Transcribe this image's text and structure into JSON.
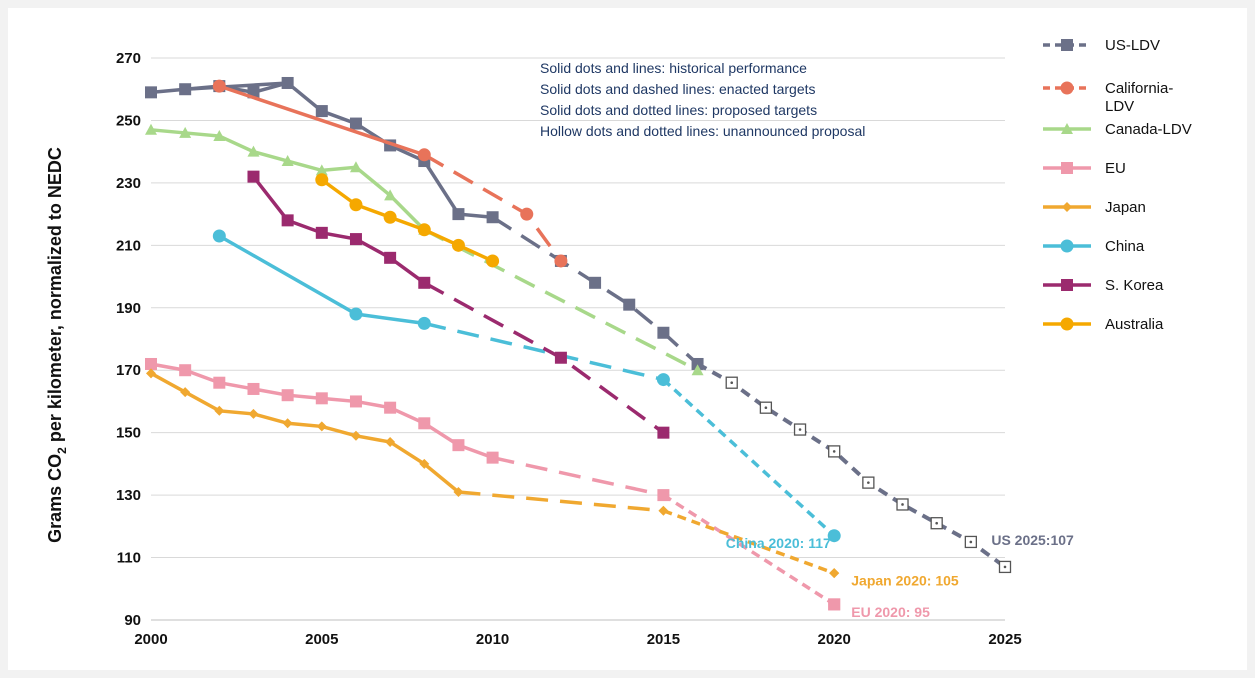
{
  "chart_data": {
    "type": "line",
    "xlim": [
      2000,
      2025
    ],
    "ylim": [
      90,
      270
    ],
    "x_ticks": [
      "2000",
      "2005",
      "2010",
      "2015",
      "2020",
      "2025"
    ],
    "y_ticks": [
      "90",
      "110",
      "130",
      "150",
      "170",
      "190",
      "210",
      "230",
      "250",
      "270"
    ],
    "ylabel": "Grams CO₂ per kilometer, normalized to NEDC",
    "grid": "horizontal",
    "legend_position": "right",
    "annotations": [
      "Solid dots and lines: historical performance",
      "Solid dots and dashed lines: enacted targets",
      "Solid dots and dotted lines: proposed targets",
      "Hollow dots and dotted lines: unannounced proposal"
    ],
    "series": [
      {
        "name": "US-LDV",
        "color": "#6b7088",
        "marker": "square",
        "legend_style": "dashed",
        "historical": [
          [
            2000,
            259
          ],
          [
            2001,
            260
          ],
          [
            2004,
            262
          ],
          [
            2005,
            253
          ],
          [
            2006,
            249
          ],
          [
            2007,
            242
          ],
          [
            2008,
            237
          ],
          [
            2009,
            220
          ],
          [
            2010,
            219
          ]
        ],
        "enacted": [
          [
            2010,
            219
          ],
          [
            2012,
            205
          ],
          [
            2013,
            198
          ],
          [
            2014,
            191
          ],
          [
            2015,
            182
          ],
          [
            2016,
            172
          ]
        ],
        "unannounced": [
          [
            2016,
            172
          ],
          [
            2017,
            166
          ],
          [
            2018,
            158
          ],
          [
            2019,
            151
          ],
          [
            2020,
            144
          ],
          [
            2021,
            134
          ],
          [
            2022,
            127
          ],
          [
            2023,
            121
          ],
          [
            2024,
            115
          ],
          [
            2025,
            107
          ]
        ],
        "extra": [
          [
            2002,
            261
          ],
          [
            2003,
            259
          ]
        ],
        "end_label": "US 2025:107"
      },
      {
        "name": "California-LDV",
        "color": "#e8735a",
        "marker": "circle",
        "legend_style": "dashed",
        "historical": [
          [
            2002,
            261
          ],
          [
            2008,
            239
          ]
        ],
        "enacted": [
          [
            2008,
            239
          ],
          [
            2011,
            220
          ],
          [
            2012,
            205
          ]
        ]
      },
      {
        "name": "Canada-LDV",
        "color": "#a8d88a",
        "marker": "triangle",
        "legend_style": "solid",
        "historical": [
          [
            2000,
            247
          ],
          [
            2001,
            246
          ],
          [
            2002,
            245
          ],
          [
            2003,
            240
          ],
          [
            2004,
            237
          ],
          [
            2005,
            234
          ],
          [
            2006,
            235
          ],
          [
            2007,
            226
          ],
          [
            2008,
            215
          ]
        ],
        "enacted": [
          [
            2008,
            215
          ],
          [
            2016,
            170
          ]
        ]
      },
      {
        "name": "EU",
        "color": "#ef98ab",
        "marker": "square",
        "legend_style": "solid",
        "historical": [
          [
            2000,
            172
          ],
          [
            2001,
            170
          ],
          [
            2002,
            166
          ],
          [
            2003,
            164
          ],
          [
            2004,
            162
          ],
          [
            2005,
            161
          ],
          [
            2006,
            160
          ],
          [
            2007,
            158
          ],
          [
            2008,
            153
          ],
          [
            2009,
            146
          ],
          [
            2010,
            142
          ]
        ],
        "enacted": [
          [
            2010,
            142
          ],
          [
            2015,
            130
          ]
        ],
        "proposed": [
          [
            2015,
            130
          ],
          [
            2020,
            95
          ]
        ],
        "end_label": "EU 2020: 95"
      },
      {
        "name": "Japan",
        "color": "#f0a830",
        "marker": "diamond",
        "legend_style": "solid",
        "historical": [
          [
            2000,
            169
          ],
          [
            2001,
            163
          ],
          [
            2002,
            157
          ],
          [
            2003,
            156
          ],
          [
            2004,
            153
          ],
          [
            2005,
            152
          ],
          [
            2006,
            149
          ],
          [
            2007,
            147
          ],
          [
            2008,
            140
          ],
          [
            2009,
            131
          ]
        ],
        "enacted": [
          [
            2009,
            131
          ],
          [
            2015,
            125
          ]
        ],
        "proposed": [
          [
            2015,
            125
          ],
          [
            2020,
            105
          ]
        ],
        "end_label": "Japan 2020: 105"
      },
      {
        "name": "China",
        "color": "#4bbed8",
        "marker": "circle",
        "legend_style": "solid",
        "historical": [
          [
            2002,
            213
          ],
          [
            2006,
            188
          ],
          [
            2008,
            185
          ]
        ],
        "enacted": [
          [
            2008,
            185
          ],
          [
            2015,
            167
          ]
        ],
        "proposed": [
          [
            2015,
            167
          ],
          [
            2020,
            117
          ]
        ],
        "end_label": "China 2020: 117"
      },
      {
        "name": "S. Korea",
        "color": "#9b2a6e",
        "marker": "square",
        "legend_style": "solid",
        "historical": [
          [
            2003,
            232
          ],
          [
            2004,
            218
          ],
          [
            2005,
            214
          ],
          [
            2006,
            212
          ],
          [
            2007,
            206
          ],
          [
            2008,
            198
          ]
        ],
        "enacted": [
          [
            2008,
            198
          ],
          [
            2012,
            174
          ],
          [
            2015,
            150
          ]
        ]
      },
      {
        "name": "Australia",
        "color": "#f5a800",
        "marker": "circle",
        "legend_style": "solid",
        "historical": [
          [
            2005,
            231
          ],
          [
            2006,
            223
          ],
          [
            2007,
            219
          ],
          [
            2008,
            215
          ],
          [
            2009,
            210
          ],
          [
            2010,
            205
          ]
        ]
      }
    ]
  }
}
